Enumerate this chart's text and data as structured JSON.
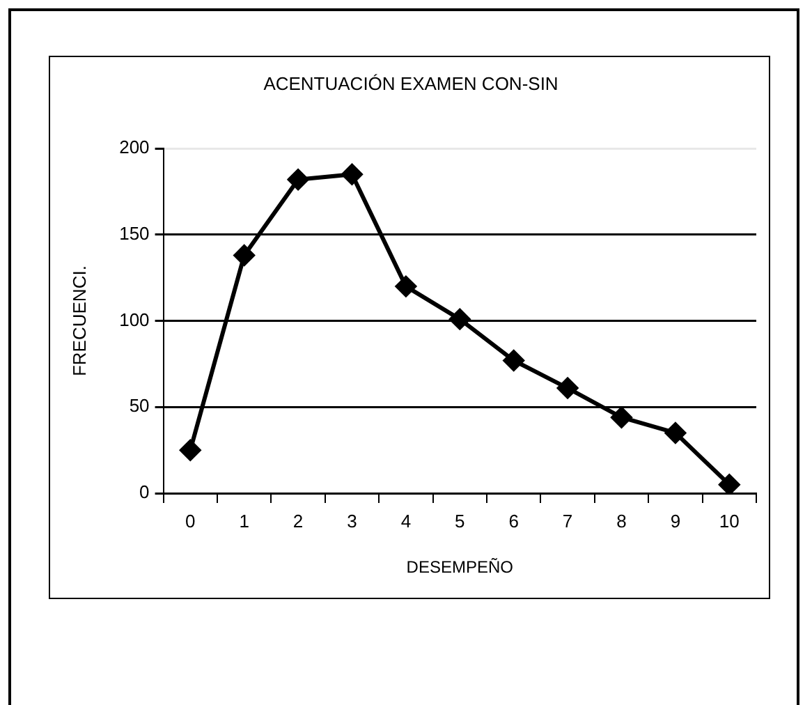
{
  "chart_data": {
    "type": "line",
    "title": "ACENTUACIÓN EXAMEN CON-SIN",
    "xlabel": "DESEMPEÑO",
    "ylabel": "FRECUENCI.",
    "categories": [
      "0",
      "1",
      "2",
      "3",
      "4",
      "5",
      "6",
      "7",
      "8",
      "9",
      "10"
    ],
    "series": [
      {
        "color": "#000000",
        "values": [
          25,
          138,
          182,
          185,
          120,
          101,
          77,
          61,
          44,
          35,
          5
        ]
      }
    ],
    "ylim": [
      0,
      200
    ],
    "yticks": [
      0,
      50,
      100,
      150,
      200
    ],
    "grid": "y",
    "legend": false,
    "marker": "diamond",
    "line_style": "solid"
  }
}
